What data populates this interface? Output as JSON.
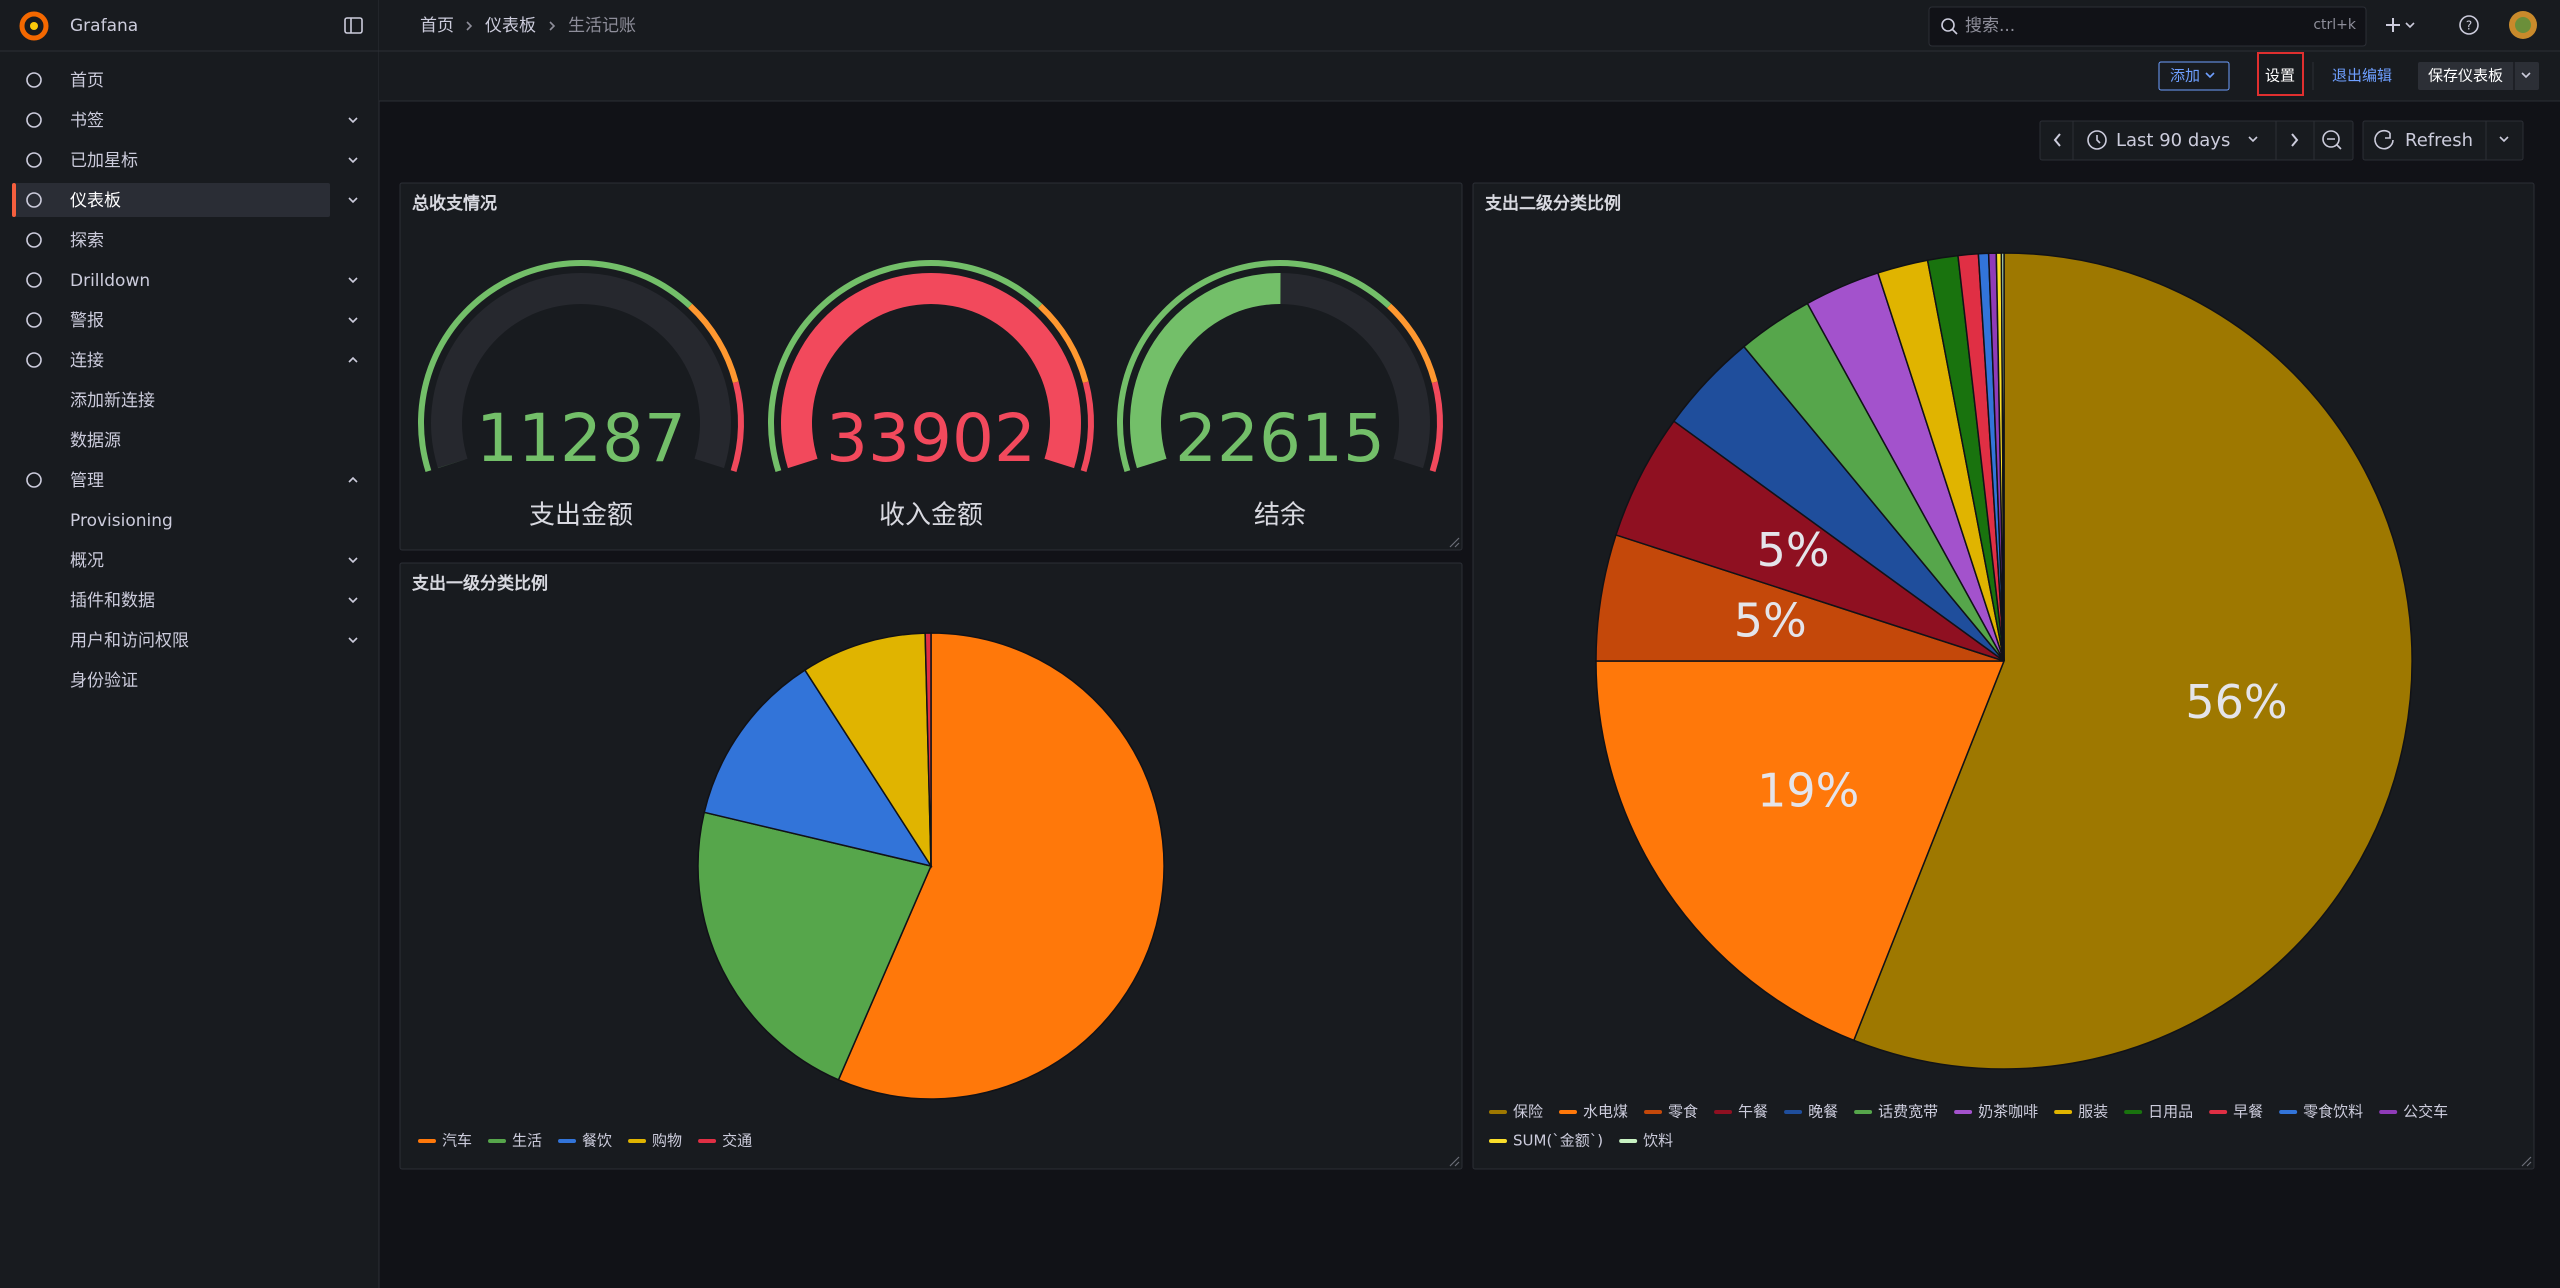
{
  "app": {
    "name": "Grafana",
    "search_placeholder": "搜索...",
    "search_shortcut": "ctrl+k"
  },
  "breadcrumb": [
    "首页",
    "仪表板",
    "生活记账"
  ],
  "nav": [
    "首页",
    "书签",
    "已加星标",
    "仪表板",
    "探索",
    "Drilldown",
    "警报",
    "连接",
    "添加新连接",
    "数据源",
    "管理",
    "Provisioning",
    "概况",
    "插件和数据",
    "用户和访问权限",
    "身份验证"
  ],
  "toolbar": {
    "add": "添加",
    "settings": "设置",
    "exit_edit": "退出编辑",
    "save": "保存仪表板",
    "time_range": "Last 90 days",
    "refresh": "Refresh"
  },
  "chart_data": [
    {
      "type": "gauge",
      "title": "总收支情况",
      "categories": [
        "支出金额",
        "收入金额",
        "结余"
      ],
      "values": [
        11287,
        33902,
        22615
      ],
      "range": [
        11287,
        33902
      ],
      "thresholds": [
        {
          "value": 0,
          "color": "#73bf69"
        },
        {
          "value": 70,
          "color": "#ff9830"
        },
        {
          "value": 85,
          "color": "#f2495c"
        }
      ]
    },
    {
      "type": "pie",
      "title": "支出一级分类比例",
      "categories": [
        "汽车",
        "生活",
        "餐饮",
        "购物",
        "交通"
      ],
      "values": [
        56.5,
        22.2,
        12.2,
        8.7,
        0.4
      ],
      "colors": [
        "#ff780a",
        "#56a64b",
        "#3274d9",
        "#e0b400",
        "#e02f44"
      ]
    },
    {
      "type": "pie",
      "title": "支出二级分类比例",
      "categories": [
        "保险",
        "水电煤",
        "零食",
        "午餐",
        "晚餐",
        "话费宽带",
        "奶茶咖啡",
        "服装",
        "日用品",
        "早餐",
        "零食饮料",
        "公交车",
        "SUM(`金额`)",
        "饮料"
      ],
      "values": [
        56,
        19,
        5,
        5,
        4,
        3,
        3,
        2,
        1.2,
        0.8,
        0.4,
        0.3,
        0.2,
        0.1
      ],
      "value_labels": [
        "56%",
        "19%",
        "5%",
        "5%",
        null,
        null,
        null,
        null,
        null,
        null,
        null,
        null,
        null,
        null
      ],
      "colors": [
        "#9e7800",
        "#ff780a",
        "#c4480a",
        "#8f1021",
        "#1f4e9c",
        "#56a64b",
        "#a352cc",
        "#e0b400",
        "#19730e",
        "#e02f44",
        "#3274d9",
        "#8f3bb8",
        "#fade2a",
        "#c8f2c2"
      ]
    }
  ]
}
